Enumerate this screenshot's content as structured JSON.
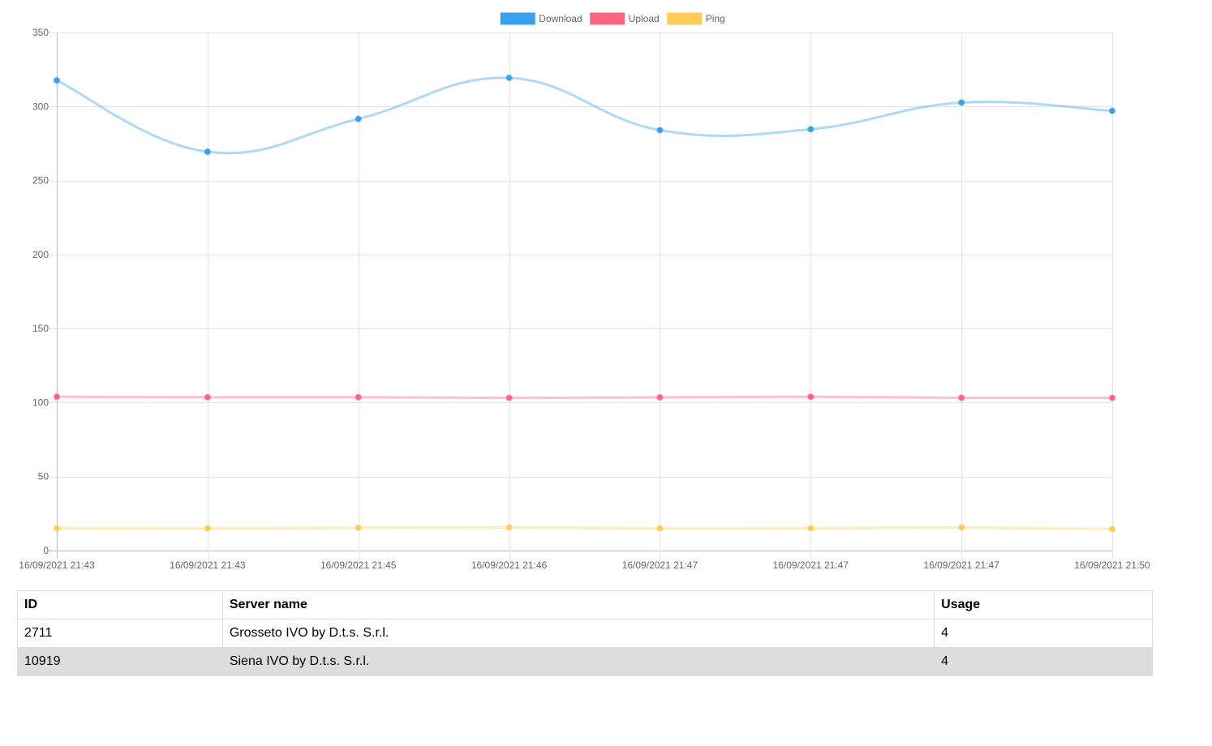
{
  "chart_data": {
    "type": "line",
    "categories": [
      "16/09/2021 21:43",
      "16/09/2021 21:43",
      "16/09/2021 21:45",
      "16/09/2021 21:46",
      "16/09/2021 21:47",
      "16/09/2021 21:47",
      "16/09/2021 21:47",
      "16/09/2021 21:50"
    ],
    "series": [
      {
        "name": "Download",
        "color": "#36a2eb",
        "values": [
          317.6,
          269.4,
          291.6,
          319.3,
          284.0,
          284.6,
          302.6,
          297.0
        ]
      },
      {
        "name": "Upload",
        "color": "#ff6384",
        "values": [
          103.9,
          103.6,
          103.6,
          103.2,
          103.5,
          103.9,
          103.2,
          103.2
        ]
      },
      {
        "name": "Ping",
        "color": "#ffcd56",
        "values": [
          15.1,
          15.0,
          15.4,
          15.6,
          15.0,
          15.1,
          15.6,
          14.6
        ]
      }
    ],
    "ylim": [
      0,
      350
    ],
    "yticks": [
      0,
      50,
      100,
      150,
      200,
      250,
      300,
      350
    ],
    "legend_position": "top",
    "grid": true,
    "line_smoothing": true
  },
  "table": {
    "headers": {
      "id": "ID",
      "server_name": "Server name",
      "usage": "Usage"
    },
    "rows": [
      {
        "id": "2711",
        "server_name": "Grosseto IVO by D.t.s. S.r.l.",
        "usage": "4"
      },
      {
        "id": "10919",
        "server_name": "Siena IVO by D.t.s. S.r.l.",
        "usage": "4"
      }
    ]
  }
}
